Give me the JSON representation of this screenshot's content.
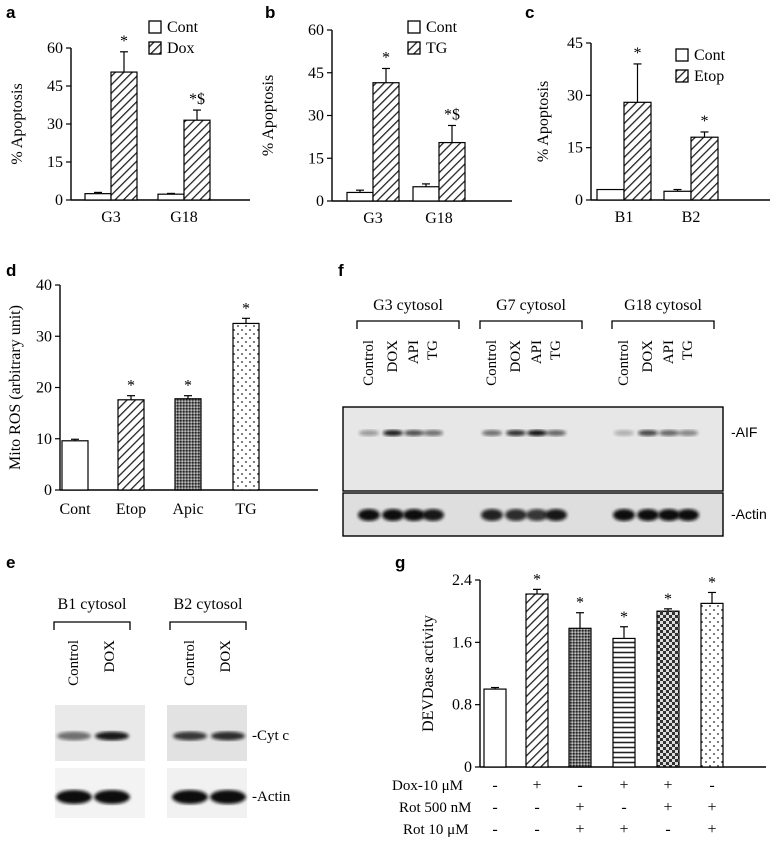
{
  "panels": {
    "a": {
      "letter": "a",
      "chart_data": {
        "type": "bar",
        "categories": [
          "G3",
          "G18"
        ],
        "ylabel": "% Apoptosis",
        "yticks": [
          "0",
          "15",
          "30",
          "45",
          "60"
        ],
        "ylim": [
          0,
          60
        ],
        "series": [
          {
            "name": "Cont",
            "values": [
              2.5,
              2.3
            ],
            "errors": [
              0.5,
              0.3
            ],
            "pattern": "open"
          },
          {
            "name": "Dox",
            "values": [
              50.5,
              31.5
            ],
            "errors": [
              8,
              4
            ],
            "pattern": "hatch"
          }
        ],
        "annotations": [
          "*",
          "*$"
        ],
        "legend_position": "top-right"
      }
    },
    "b": {
      "letter": "b",
      "chart_data": {
        "type": "bar",
        "categories": [
          "G3",
          "G18"
        ],
        "ylabel": "% Apoptosis",
        "yticks": [
          "0",
          "15",
          "30",
          "45",
          "60"
        ],
        "ylim": [
          0,
          60
        ],
        "series": [
          {
            "name": "Cont",
            "values": [
              3,
              5
            ],
            "errors": [
              0.8,
              1
            ],
            "pattern": "open"
          },
          {
            "name": "TG",
            "values": [
              41.5,
              20.5
            ],
            "errors": [
              5,
              6
            ],
            "pattern": "hatch"
          }
        ],
        "annotations": [
          "*",
          "*$"
        ],
        "legend_position": "top-right"
      }
    },
    "c": {
      "letter": "c",
      "chart_data": {
        "type": "bar",
        "categories": [
          "B1",
          "B2"
        ],
        "ylabel": "% Apoptosis",
        "yticks": [
          "0",
          "15",
          "30",
          "45"
        ],
        "ylim": [
          0,
          45
        ],
        "series": [
          {
            "name": "Cont",
            "values": [
              3,
              2.5
            ],
            "errors": [
              0,
              0.5
            ],
            "pattern": "open"
          },
          {
            "name": "Etop",
            "values": [
              28,
              18
            ],
            "errors": [
              11,
              1.5
            ],
            "pattern": "hatch"
          }
        ],
        "annotations": [
          "*",
          "*"
        ],
        "legend_position": "top-right"
      }
    },
    "d": {
      "letter": "d",
      "chart_data": {
        "type": "bar",
        "categories": [
          "Cont",
          "Etop",
          "Apic",
          "TG"
        ],
        "values": [
          9.6,
          17.6,
          17.8,
          32.5
        ],
        "errors": [
          0.3,
          0.8,
          0.6,
          1.0
        ],
        "patterns": [
          "open",
          "hatch",
          "dense",
          "dots"
        ],
        "ylabel": "Mito ROS (arbitrary unit)",
        "yticks": [
          "0",
          "10",
          "20",
          "30",
          "40"
        ],
        "ylim": [
          0,
          40
        ],
        "annotations": [
          "",
          "*",
          "*",
          "*"
        ]
      }
    },
    "e": {
      "letter": "e",
      "groups": [
        {
          "title": "B1 cytosol",
          "lanes": [
            "Control",
            "DOX"
          ]
        },
        {
          "title": "B2 cytosol",
          "lanes": [
            "Control",
            "DOX"
          ]
        }
      ],
      "bands": [
        "-Cyt c",
        "-Actin"
      ]
    },
    "f": {
      "letter": "f",
      "groups": [
        {
          "title": "G3 cytosol",
          "lanes": [
            "Control",
            "DOX",
            "API",
            "TG"
          ]
        },
        {
          "title": "G7 cytosol",
          "lanes": [
            "Control",
            "DOX",
            "API",
            "TG"
          ]
        },
        {
          "title": "G18 cytosol",
          "lanes": [
            "Control",
            "DOX",
            "API",
            "TG"
          ]
        }
      ],
      "bands": [
        "-AIF",
        "-Actin"
      ]
    },
    "g": {
      "letter": "g",
      "chart_data": {
        "type": "bar",
        "values": [
          1.0,
          2.22,
          1.78,
          1.65,
          2.0,
          2.1
        ],
        "errors": [
          0.02,
          0.06,
          0.2,
          0.15,
          0.03,
          0.14
        ],
        "patterns": [
          "open",
          "hatch",
          "dense",
          "hlines",
          "checker",
          "dots"
        ],
        "ylabel": "DEVDase activity",
        "yticks": [
          "0",
          "0.8",
          "1.6",
          "2.4"
        ],
        "ylim": [
          0,
          2.4
        ],
        "annotations": [
          "",
          "*",
          "*",
          "*",
          "*",
          "*"
        ],
        "conditions": [
          {
            "label": "Dox-10 μM",
            "signs": [
              "-",
              "+",
              "-",
              "+",
              "+",
              "-"
            ]
          },
          {
            "label": "Rot 500 nM",
            "signs": [
              "-",
              "-",
              "+",
              "-",
              "+",
              "+"
            ]
          },
          {
            "label": "Rot 10 μM",
            "signs": [
              "-",
              "-",
              "+",
              "+",
              "-",
              "+"
            ]
          }
        ]
      }
    }
  }
}
